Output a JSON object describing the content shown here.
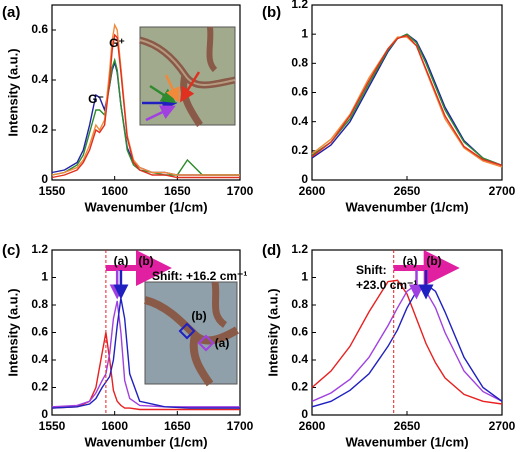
{
  "chart_data": [
    {
      "type": "line",
      "label": "(a)",
      "x_label": "Wavenumber (1/cm)",
      "y_label": "Intensity (a.u.)",
      "x": [
        1550,
        1560,
        1570,
        1575,
        1580,
        1585,
        1588,
        1592,
        1596,
        1598,
        1600,
        1602,
        1605,
        1610,
        1615,
        1620,
        1630,
        1640,
        1650,
        1658,
        1670,
        1680,
        1690,
        1700
      ],
      "series": [
        {
          "color": "#2020a8",
          "values": [
            0.03,
            0.04,
            0.07,
            0.12,
            0.22,
            0.34,
            0.33,
            0.28,
            0.38,
            0.44,
            0.47,
            0.43,
            0.3,
            0.13,
            0.07,
            0.05,
            0.03,
            0.03,
            0.02,
            0.02,
            0.02,
            0.02,
            0.02,
            0.02
          ]
        },
        {
          "color": "#2e8b2e",
          "values": [
            0.02,
            0.03,
            0.06,
            0.1,
            0.19,
            0.28,
            0.28,
            0.26,
            0.38,
            0.45,
            0.48,
            0.44,
            0.3,
            0.12,
            0.06,
            0.04,
            0.03,
            0.02,
            0.02,
            0.08,
            0.02,
            0.02,
            0.02,
            0.02
          ]
        },
        {
          "color": "#f08a3a",
          "values": [
            0.02,
            0.03,
            0.05,
            0.08,
            0.14,
            0.22,
            0.2,
            0.24,
            0.44,
            0.56,
            0.62,
            0.6,
            0.45,
            0.18,
            0.08,
            0.05,
            0.03,
            0.03,
            0.02,
            0.02,
            0.02,
            0.02,
            0.02,
            0.02
          ]
        },
        {
          "color": "#e03020",
          "values": [
            0.01,
            0.02,
            0.04,
            0.07,
            0.12,
            0.2,
            0.19,
            0.22,
            0.4,
            0.52,
            0.58,
            0.57,
            0.43,
            0.17,
            0.07,
            0.04,
            0.02,
            0.02,
            0.01,
            0.01,
            0.01,
            0.01,
            0.01,
            0.01
          ]
        }
      ],
      "annotations": [
        "G⁻",
        "G⁺"
      ],
      "xlim": [
        1550,
        1700
      ],
      "xticks": [
        1550,
        1600,
        1650,
        1700
      ],
      "ylim": [
        0,
        0.7
      ],
      "yticks": [
        0,
        0.2,
        0.4,
        0.6
      ]
    },
    {
      "type": "line",
      "label": "(b)",
      "x_label": "Wavenumber (1/cm)",
      "x": [
        2600,
        2610,
        2620,
        2630,
        2640,
        2645,
        2650,
        2655,
        2660,
        2670,
        2680,
        2690,
        2700
      ],
      "series": [
        {
          "color": "#2020a8",
          "values": [
            0.15,
            0.24,
            0.4,
            0.64,
            0.88,
            0.97,
            1,
            0.95,
            0.82,
            0.5,
            0.27,
            0.15,
            0.1
          ]
        },
        {
          "color": "#2e8b2e",
          "values": [
            0.17,
            0.26,
            0.42,
            0.66,
            0.89,
            0.97,
            1,
            0.94,
            0.8,
            0.48,
            0.26,
            0.15,
            0.1
          ]
        },
        {
          "color": "#f08a3a",
          "values": [
            0.18,
            0.28,
            0.45,
            0.7,
            0.9,
            0.98,
            0.98,
            0.92,
            0.75,
            0.42,
            0.22,
            0.13,
            0.09
          ]
        },
        {
          "color": "#e03020",
          "values": [
            0.16,
            0.26,
            0.44,
            0.68,
            0.9,
            0.97,
            0.99,
            0.92,
            0.76,
            0.44,
            0.23,
            0.14,
            0.1
          ]
        }
      ],
      "xlim": [
        2600,
        2700
      ],
      "xticks": [
        2600,
        2650,
        2700
      ],
      "ylim": [
        0,
        1.2
      ],
      "yticks": [
        0,
        0.2,
        0.4,
        0.6,
        0.8,
        1,
        1.2
      ]
    },
    {
      "type": "line",
      "label": "(c)",
      "x_label": "Wavenumber (1/cm)",
      "y_label": "Intensity (a.u.)",
      "x": [
        1550,
        1570,
        1580,
        1585,
        1590,
        1593,
        1596,
        1599,
        1602,
        1605,
        1608,
        1612,
        1620,
        1640,
        1660,
        1680,
        1700
      ],
      "series": [
        {
          "color": "#e82020",
          "values": [
            0.05,
            0.06,
            0.1,
            0.2,
            0.45,
            0.6,
            0.4,
            0.18,
            0.1,
            0.07,
            0.05,
            0.05,
            0.04,
            0.04,
            0.04,
            0.04,
            0.04
          ]
        },
        {
          "color": "#a040e0",
          "values": [
            0.06,
            0.07,
            0.1,
            0.16,
            0.25,
            0.3,
            0.45,
            0.7,
            0.83,
            0.6,
            0.25,
            0.12,
            0.07,
            0.06,
            0.06,
            0.06,
            0.06
          ]
        },
        {
          "color": "#2020c0",
          "values": [
            0.05,
            0.06,
            0.08,
            0.12,
            0.2,
            0.24,
            0.28,
            0.4,
            0.65,
            0.85,
            0.7,
            0.3,
            0.1,
            0.06,
            0.05,
            0.05,
            0.05
          ]
        }
      ],
      "vline": 1593,
      "annotations": [
        "(a)",
        "(b)",
        "Shift: +16.2 cm⁻¹"
      ],
      "xlim": [
        1550,
        1700
      ],
      "xticks": [
        1550,
        1600,
        1650,
        1700
      ],
      "ylim": [
        0,
        1.2
      ],
      "yticks": [
        0,
        0.2,
        0.4,
        0.6,
        0.8,
        1,
        1.2
      ]
    },
    {
      "type": "line",
      "label": "(d)",
      "x_label": "Wavenumber (1/cm)",
      "y_label": "Intensity (a.u.)",
      "x": [
        2600,
        2610,
        2620,
        2630,
        2640,
        2645,
        2650,
        2655,
        2660,
        2665,
        2670,
        2680,
        2690,
        2700
      ],
      "series": [
        {
          "color": "#e82020",
          "values": [
            0.2,
            0.32,
            0.5,
            0.75,
            0.97,
            0.98,
            0.88,
            0.7,
            0.52,
            0.38,
            0.27,
            0.15,
            0.1,
            0.08
          ]
        },
        {
          "color": "#a040e0",
          "values": [
            0.1,
            0.16,
            0.26,
            0.42,
            0.65,
            0.78,
            0.9,
            0.95,
            0.9,
            0.78,
            0.6,
            0.32,
            0.17,
            0.1
          ]
        },
        {
          "color": "#2020c0",
          "values": [
            0.06,
            0.1,
            0.18,
            0.3,
            0.5,
            0.62,
            0.78,
            0.9,
            0.95,
            0.9,
            0.75,
            0.42,
            0.2,
            0.1
          ]
        }
      ],
      "vline": 2643,
      "annotations": [
        "(a)",
        "(b)",
        "Shift:",
        "+23.0 cm⁻¹"
      ],
      "xlim": [
        2600,
        2700
      ],
      "xticks": [
        2600,
        2650,
        2700
      ],
      "ylim": [
        0,
        1.2
      ],
      "yticks": [
        0,
        0.2,
        0.4,
        0.6,
        0.8,
        1,
        1.2
      ]
    }
  ]
}
